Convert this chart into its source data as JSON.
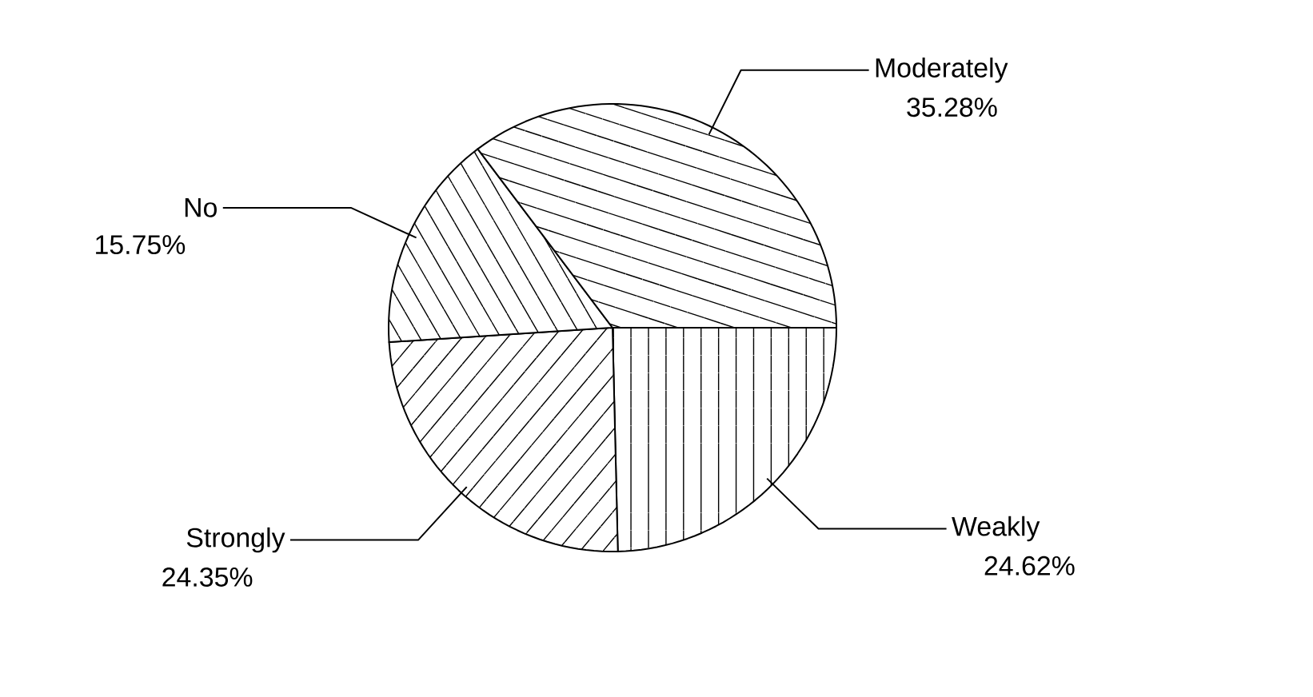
{
  "chart_data": {
    "type": "pie",
    "categories": [
      "Weakly",
      "Strongly",
      "No",
      "Moderately"
    ],
    "values": [
      24.62,
      24.35,
      15.75,
      35.28
    ],
    "value_labels": [
      "24.62%",
      "24.35%",
      "15.75%",
      "35.28%"
    ],
    "colors": [
      "#ffffff",
      "#ffffff",
      "#ffffff",
      "#ffffff"
    ]
  }
}
